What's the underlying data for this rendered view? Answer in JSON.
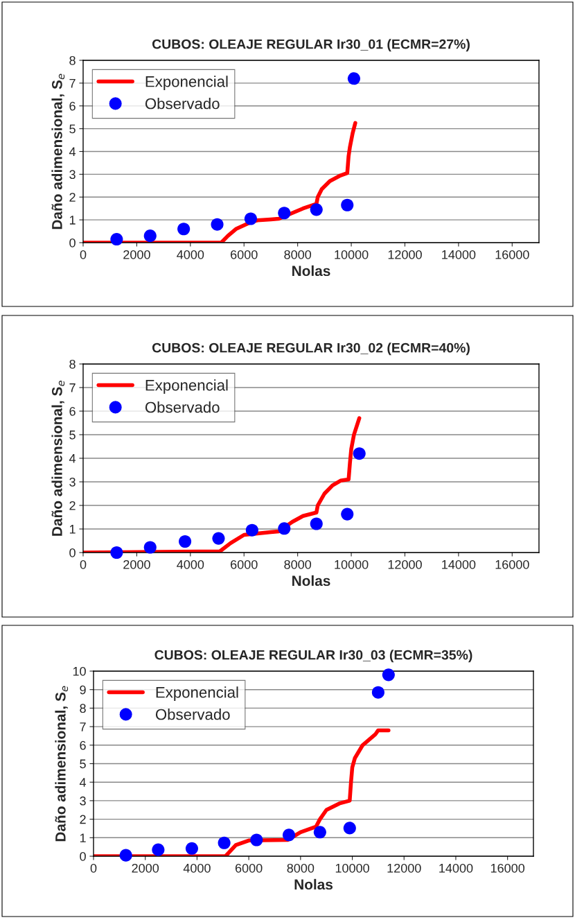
{
  "chart_data": [
    {
      "type": "line",
      "title": "CUBOS: OLEAJE REGULAR Ir30_01 (ECMR=27%)",
      "xlabel": "Nolas",
      "ylabel": "Daño adimensional, S$_{e}$",
      "xlim": [
        0,
        17000
      ],
      "xticks": [
        0,
        2000,
        4000,
        6000,
        8000,
        10000,
        12000,
        14000,
        16000
      ],
      "ylim": [
        0,
        8
      ],
      "yticks": [
        0,
        1,
        2,
        3,
        4,
        5,
        6,
        7,
        8
      ],
      "grid": "y",
      "legend": "top left",
      "series": [
        {
          "name": "Exponencial",
          "type": "line",
          "color": "#ff0000",
          "marker": "none",
          "line_style": "solid",
          "x": [
            0,
            5150,
            5400,
            5700,
            6250,
            6500,
            7000,
            7300,
            7800,
            8200,
            8700,
            8750,
            8900,
            9200,
            9600,
            9850,
            9900,
            9950,
            10050,
            10150
          ],
          "values": [
            0,
            0,
            0.3,
            0.6,
            0.9,
            0.98,
            1.02,
            1.05,
            1.3,
            1.5,
            1.7,
            2.0,
            2.35,
            2.7,
            2.95,
            3.05,
            3.8,
            4.2,
            4.8,
            5.25
          ]
        },
        {
          "name": "Observado",
          "type": "scatter",
          "color": "#0000ff",
          "marker": "circle",
          "x": [
            1250,
            2500,
            3750,
            5000,
            6250,
            7500,
            8700,
            9850,
            10100
          ],
          "values": [
            0.15,
            0.3,
            0.6,
            0.8,
            1.05,
            1.3,
            1.45,
            1.65,
            7.2
          ]
        }
      ]
    },
    {
      "type": "line",
      "title": "CUBOS: OLEAJE REGULAR Ir30_02 (ECMR=40%)",
      "xlabel": "Nolas",
      "ylabel": "Daño adimensional, S$_{e}$",
      "xlim": [
        0,
        17000
      ],
      "xticks": [
        0,
        2000,
        4000,
        6000,
        8000,
        10000,
        12000,
        14000,
        16000
      ],
      "ylim": [
        0,
        8
      ],
      "yticks": [
        0,
        1,
        2,
        3,
        4,
        5,
        6,
        7,
        8
      ],
      "grid": "y",
      "legend": "top left",
      "series": [
        {
          "name": "Exponencial",
          "type": "line",
          "color": "#ff0000",
          "marker": "none",
          "line_style": "solid",
          "x": [
            0,
            5100,
            5500,
            6000,
            7000,
            7300,
            7800,
            8200,
            8700,
            8750,
            9000,
            9300,
            9600,
            9900,
            9950,
            10000,
            10100,
            10300
          ],
          "values": [
            0,
            0.05,
            0.4,
            0.75,
            0.87,
            0.9,
            1.3,
            1.55,
            1.7,
            2.0,
            2.5,
            2.85,
            3.05,
            3.1,
            3.8,
            4.4,
            5.0,
            5.7
          ]
        },
        {
          "name": "Observado",
          "type": "scatter",
          "color": "#0000ff",
          "marker": "circle",
          "x": [
            1250,
            2500,
            3800,
            5050,
            6300,
            7500,
            8700,
            9850,
            10300
          ],
          "values": [
            0,
            0.22,
            0.47,
            0.6,
            0.95,
            1.02,
            1.22,
            1.63,
            4.2
          ]
        }
      ]
    },
    {
      "type": "line",
      "title": "CUBOS: OLEAJE REGULAR Ir30_03 (ECMR=35%)",
      "xlabel": "Nolas",
      "ylabel": "Daño adimensional, S$_{e}$",
      "xlim": [
        0,
        17000
      ],
      "xticks": [
        0,
        2000,
        4000,
        6000,
        8000,
        10000,
        12000,
        14000,
        16000
      ],
      "ylim": [
        0,
        10
      ],
      "yticks": [
        0,
        1,
        2,
        3,
        4,
        5,
        6,
        7,
        8,
        9,
        10
      ],
      "grid": "y",
      "legend": "top left",
      "series": [
        {
          "name": "Exponencial",
          "type": "line",
          "color": "#ff0000",
          "marker": "none",
          "line_style": "solid",
          "x": [
            0,
            5100,
            5500,
            6000,
            7500,
            8000,
            8600,
            8750,
            9000,
            9500,
            9900,
            9950,
            10000,
            10100,
            10400,
            10900,
            11000,
            11400
          ],
          "values": [
            0,
            0,
            0.6,
            0.85,
            0.88,
            1.3,
            1.6,
            2.0,
            2.5,
            2.85,
            3.0,
            4.0,
            4.8,
            5.3,
            6.0,
            6.6,
            6.8,
            6.8
          ]
        },
        {
          "name": "Observado",
          "type": "scatter",
          "color": "#0000ff",
          "marker": "circle",
          "x": [
            1250,
            2500,
            3800,
            5050,
            6300,
            7550,
            8750,
            9900,
            11000,
            11400
          ],
          "values": [
            0.05,
            0.35,
            0.42,
            0.72,
            0.88,
            1.15,
            1.3,
            1.52,
            8.85,
            9.8
          ]
        }
      ]
    }
  ]
}
